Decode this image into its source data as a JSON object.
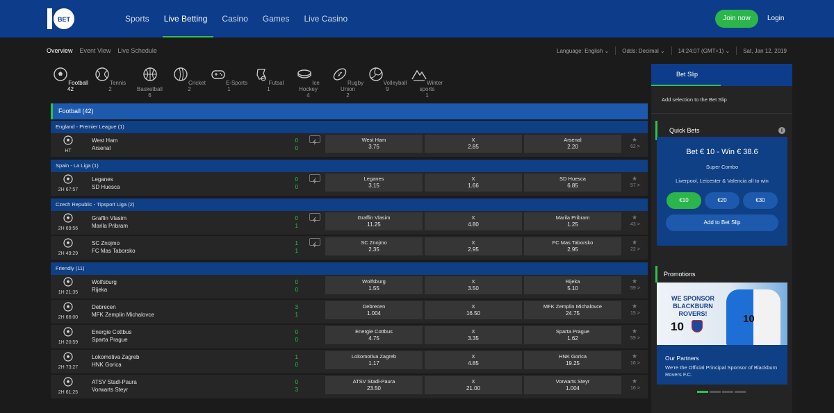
{
  "brand": {
    "logo_text": "10 BET",
    "accent": "#2ec24e",
    "primary": "#0d3d8a"
  },
  "nav": {
    "items": [
      "Sports",
      "Live Betting",
      "Casino",
      "Games",
      "Live Casino"
    ],
    "active": "Live Betting",
    "join_label": "Join now",
    "login_label": "Login"
  },
  "subnav": {
    "tabs": [
      "Overview",
      "Event View",
      "Live Schedule"
    ],
    "active": "Overview",
    "language_label": "Language:",
    "language_value": "English",
    "odds_label": "Odds:",
    "odds_value": "Decimal",
    "time": "14:24:07 (GMT+1)",
    "date": "Sat, Jan 12, 2019"
  },
  "sports": [
    {
      "name": "Football",
      "count": "42",
      "icon": "football-icon",
      "active": true
    },
    {
      "name": "Tennis",
      "count": "2",
      "icon": "tennis-icon"
    },
    {
      "name": "Basketball",
      "count": "6",
      "icon": "basketball-icon"
    },
    {
      "name": "Cricket",
      "count": "2",
      "icon": "cricket-icon"
    },
    {
      "name": "E-Sports",
      "count": "1",
      "icon": "gamepad-icon"
    },
    {
      "name": "Futsal",
      "count": "1",
      "icon": "futsal-icon"
    },
    {
      "name": "Ice Hockey",
      "count": "4",
      "icon": "puck-icon"
    },
    {
      "name": "Rugby Union",
      "count": "2",
      "icon": "rugby-ball-icon"
    },
    {
      "name": "Volleyball",
      "count": "9",
      "icon": "volleyball-icon"
    },
    {
      "name": "Winter sports",
      "count": "1",
      "icon": "mountain-icon"
    }
  ],
  "main": {
    "sport_header": "Football (42)",
    "leagues": [
      {
        "name": "England - Premier League (1)",
        "matches": [
          {
            "home": "West Ham",
            "away": "Arsenal",
            "time": "HT",
            "score_home": "0",
            "score_away": "0",
            "live": true,
            "odds": [
              [
                "West Ham",
                "3.75"
              ],
              [
                "X",
                "2.85"
              ],
              [
                "Arsenal",
                "2.20"
              ]
            ],
            "markets": "62 >"
          }
        ]
      },
      {
        "name": "Spain - La Liga (1)",
        "matches": [
          {
            "home": "Leganes",
            "away": "SD Huesca",
            "time": "2H 67:57",
            "score_home": "0",
            "score_away": "0",
            "live": true,
            "odds": [
              [
                "Leganes",
                "3.15"
              ],
              [
                "X",
                "1.66"
              ],
              [
                "SD Huesca",
                "6.85"
              ]
            ],
            "markets": "57 >"
          }
        ]
      },
      {
        "name": "Czech Republic - Tipsport Liga (2)",
        "matches": [
          {
            "home": "Graffin Vlasim",
            "away": "Marila Pribram",
            "time": "2H 69:56",
            "score_home": "0",
            "score_away": "1",
            "live": true,
            "odds": [
              [
                "Graffin Vlasim",
                "11.25"
              ],
              [
                "X",
                "4.80"
              ],
              [
                "Marila Pribram",
                "1.25"
              ]
            ],
            "markets": "43 >"
          },
          {
            "home": "SC Znojmo",
            "away": "FC Mas Taborsko",
            "time": "2H 49:29",
            "score_home": "1",
            "score_away": "1",
            "live": true,
            "odds": [
              [
                "SC Znojmo",
                "2.35"
              ],
              [
                "X",
                "2.95"
              ],
              [
                "FC Mas Taborsko",
                "2.95"
              ]
            ],
            "markets": "22 >"
          }
        ]
      },
      {
        "name": "Friendly (11)",
        "matches": [
          {
            "home": "Wolfsburg",
            "away": "Rijeka",
            "time": "1H 21:35",
            "score_home": "0",
            "score_away": "0",
            "live": false,
            "odds": [
              [
                "Wolfsburg",
                "1.55"
              ],
              [
                "X",
                "3.50"
              ],
              [
                "Rijeka",
                "5.10"
              ]
            ],
            "markets": "59 >"
          },
          {
            "home": "Debrecen",
            "away": "MFK Zemplin Michalovce",
            "time": "2H 66:00",
            "score_home": "3",
            "score_away": "1",
            "live": false,
            "odds": [
              [
                "Debrecen",
                "1.004"
              ],
              [
                "X",
                "16.50"
              ],
              [
                "MFK Zemplin Michalovce",
                "24.75"
              ]
            ],
            "markets": "15 >"
          },
          {
            "home": "Energie Cottbus",
            "away": "Sparta Prague",
            "time": "1H 20:59",
            "score_home": "0",
            "score_away": "0",
            "live": false,
            "odds": [
              [
                "Energie Cottbus",
                "4.75"
              ],
              [
                "X",
                "3.35"
              ],
              [
                "Sparta Prague",
                "1.62"
              ]
            ],
            "markets": "59 >"
          },
          {
            "home": "Lokomotiva Zagreb",
            "away": "HNK Gorica",
            "time": "2H 73:27",
            "score_home": "1",
            "score_away": "0",
            "live": false,
            "odds": [
              [
                "Lokomotiva Zagreb",
                "1.17"
              ],
              [
                "X",
                "4.85"
              ],
              [
                "HNK Gorica",
                "19.25"
              ]
            ],
            "markets": "16 >"
          },
          {
            "home": "ATSV Stadl-Paura",
            "away": "Vorwarts Steyr",
            "time": "2H 61:25",
            "score_home": "0",
            "score_away": "3",
            "live": false,
            "odds": [
              [
                "ATSV Stadl-Paura",
                "23.50"
              ],
              [
                "X",
                "21.00"
              ],
              [
                "Vorwarts Steyr",
                "1.004"
              ]
            ],
            "markets": "16 >"
          }
        ]
      }
    ]
  },
  "betslip": {
    "tab": "Bet Slip",
    "empty_text": "Add selection to the Bet Slip"
  },
  "quickbets": {
    "header": "Quick Bets",
    "title": "Bet € 10 - Win € 38.6",
    "subtitle": "Super Combo",
    "description": "Liverpool, Leicester & Valencia all to win",
    "stakes": [
      "€10",
      "€20",
      "€30"
    ],
    "selected_stake": "€10",
    "add_label": "Add to Bet Slip"
  },
  "promotions": {
    "header": "Promotions",
    "banner_text": "WE SPONSOR BLACKBURN ROVERS!",
    "banner_logo": "10",
    "shirt_logo": "10",
    "title": "Our Partners",
    "text": "We're the Official Principal Sponsor of Blackburn Rovers F.C."
  }
}
